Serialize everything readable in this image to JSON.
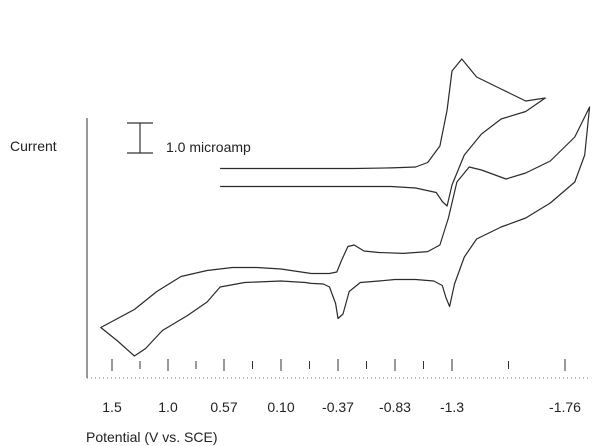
{
  "chart_data": {
    "type": "line",
    "title": "",
    "xlabel": "Potential  (V vs. SCE)",
    "ylabel": "Current",
    "x_axis_direction": "reversed",
    "x_ticks": [
      "1.5",
      "1.0",
      "0.57",
      "0.10",
      "-0.37",
      "-0.83",
      "-1.3",
      "-1.76"
    ],
    "xlim": [
      1.7,
      -1.85
    ],
    "scale_bar": {
      "label": "1.0 microamp",
      "value": 1.0,
      "unit": "microamp"
    },
    "grid": false,
    "legend": "none",
    "series": [
      {
        "points": [
          [
            0.6,
            5.55
          ],
          [
            0.2,
            5.55
          ],
          [
            -0.2,
            5.55
          ],
          [
            -0.5,
            5.55
          ],
          [
            -0.8,
            5.57
          ],
          [
            -1.0,
            5.6
          ],
          [
            -1.1,
            5.75
          ],
          [
            -1.2,
            6.3
          ],
          [
            -1.26,
            7.5
          ],
          [
            -1.3,
            8.8
          ],
          [
            -1.34,
            9.2
          ],
          [
            -1.4,
            8.6
          ],
          [
            -1.5,
            8.2
          ],
          [
            -1.6,
            7.8
          ],
          [
            -1.68,
            7.9
          ],
          [
            -1.6,
            7.45
          ],
          [
            -1.5,
            7.2
          ],
          [
            -1.42,
            6.7
          ],
          [
            -1.35,
            6.0
          ],
          [
            -1.3,
            5.0
          ],
          [
            -1.26,
            4.3
          ],
          [
            -1.22,
            4.45
          ],
          [
            -1.17,
            4.75
          ],
          [
            -1.0,
            4.9
          ],
          [
            -0.8,
            4.95
          ],
          [
            -0.4,
            4.95
          ],
          [
            0.2,
            4.95
          ],
          [
            0.6,
            4.95
          ]
        ],
        "color": "#2b2b2b"
      },
      {
        "points": [
          [
            -0.15,
            2.05
          ],
          [
            -0.3,
            2.05
          ],
          [
            -0.36,
            2.1
          ],
          [
            -0.4,
            2.5
          ],
          [
            -0.45,
            2.95
          ],
          [
            -0.5,
            3.0
          ],
          [
            -0.58,
            2.8
          ],
          [
            -0.7,
            2.75
          ],
          [
            -0.9,
            2.72
          ],
          [
            -1.1,
            2.78
          ],
          [
            -1.2,
            3.0
          ],
          [
            -1.27,
            3.9
          ],
          [
            -1.32,
            5.1
          ],
          [
            -1.37,
            5.6
          ],
          [
            -1.42,
            5.5
          ],
          [
            -1.52,
            5.2
          ],
          [
            -1.6,
            5.4
          ],
          [
            -1.7,
            5.8
          ],
          [
            -1.8,
            6.6
          ],
          [
            -1.86,
            7.6
          ],
          [
            -1.84,
            6.0
          ],
          [
            -1.8,
            5.1
          ],
          [
            -1.7,
            4.4
          ],
          [
            -1.6,
            3.9
          ],
          [
            -1.5,
            3.6
          ],
          [
            -1.4,
            3.2
          ],
          [
            -1.35,
            2.6
          ],
          [
            -1.31,
            1.7
          ],
          [
            -1.28,
            0.95
          ],
          [
            -1.25,
            1.25
          ],
          [
            -1.22,
            1.65
          ],
          [
            -1.15,
            1.8
          ],
          [
            -1.0,
            1.85
          ],
          [
            -0.83,
            1.85
          ],
          [
            -0.7,
            1.8
          ],
          [
            -0.55,
            1.75
          ],
          [
            -0.46,
            1.45
          ],
          [
            -0.41,
            0.7
          ],
          [
            -0.37,
            0.55
          ],
          [
            -0.35,
            1.05
          ],
          [
            -0.3,
            1.6
          ],
          [
            -0.25,
            1.7
          ],
          [
            -0.15,
            1.72
          ],
          [
            -0.1,
            1.75
          ],
          [
            0.1,
            1.8
          ],
          [
            0.4,
            1.75
          ],
          [
            0.6,
            1.6
          ],
          [
            0.7,
            1.1
          ],
          [
            0.85,
            0.65
          ],
          [
            1.05,
            0.15
          ],
          [
            1.2,
            -0.45
          ],
          [
            1.3,
            -0.7
          ],
          [
            1.45,
            -0.2
          ],
          [
            1.6,
            0.25
          ],
          [
            1.45,
            0.55
          ],
          [
            1.3,
            0.85
          ],
          [
            1.1,
            1.45
          ],
          [
            0.9,
            1.95
          ],
          [
            0.7,
            2.15
          ],
          [
            0.5,
            2.25
          ],
          [
            0.3,
            2.25
          ],
          [
            0.1,
            2.2
          ],
          [
            -0.15,
            2.05
          ]
        ],
        "color": "#2b2b2b"
      }
    ]
  }
}
